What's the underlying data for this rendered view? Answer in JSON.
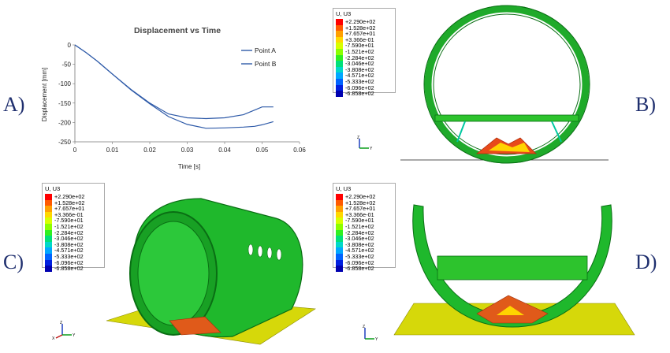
{
  "panels": {
    "a": "A)",
    "b": "B)",
    "c": "C)",
    "d": "D)"
  },
  "chart_data": {
    "type": "line",
    "title": "Displacement vs Time",
    "xlabel": "Time [s]",
    "ylabel": "Displacement [mm]",
    "xlim": [
      0,
      0.06
    ],
    "ylim": [
      -250,
      0
    ],
    "xticks": [
      "0",
      "0.01",
      "0.02",
      "0.03",
      "0.04",
      "0.05",
      "0.06"
    ],
    "yticks": [
      "0",
      "-50",
      "-100",
      "-150",
      "-200",
      "-250"
    ],
    "legend_position": "top-right",
    "series": [
      {
        "name": "Point A",
        "color": "#2e5aa8",
        "x": [
          0,
          0.003,
          0.006,
          0.01,
          0.015,
          0.02,
          0.025,
          0.03,
          0.035,
          0.04,
          0.045,
          0.048,
          0.05,
          0.053
        ],
        "y": [
          0,
          -20,
          -42,
          -75,
          -115,
          -150,
          -178,
          -188,
          -190,
          -188,
          -180,
          -168,
          -160,
          -160
        ]
      },
      {
        "name": "Point B",
        "color": "#2e5aa8",
        "x": [
          0,
          0.003,
          0.006,
          0.01,
          0.015,
          0.02,
          0.025,
          0.03,
          0.035,
          0.04,
          0.045,
          0.048,
          0.05,
          0.053
        ],
        "y": [
          0,
          -20,
          -42,
          -75,
          -116,
          -152,
          -185,
          -205,
          -215,
          -214,
          -212,
          -210,
          -206,
          -198
        ]
      }
    ]
  },
  "contour_legend": {
    "title": "U, U3",
    "entries": [
      "+2.290e+02",
      "+1.528e+02",
      "+7.657e+01",
      "+3.366e-01",
      "-7.590e+01",
      "-1.521e+02",
      "-2.284e+02",
      "-3.046e+02",
      "-3.808e+02",
      "-4.571e+02",
      "-5.333e+02",
      "-6.096e+02",
      "-6.858e+02"
    ],
    "colors": [
      "#ff0000",
      "#ff5a00",
      "#ffa000",
      "#ffd800",
      "#d8ff00",
      "#8cff00",
      "#30f020",
      "#00e07a",
      "#00d8c8",
      "#00a8ff",
      "#0064ff",
      "#0020e0",
      "#0000b0"
    ]
  },
  "triad_labels": {
    "z": "Z",
    "y": "Y",
    "x": "X"
  }
}
